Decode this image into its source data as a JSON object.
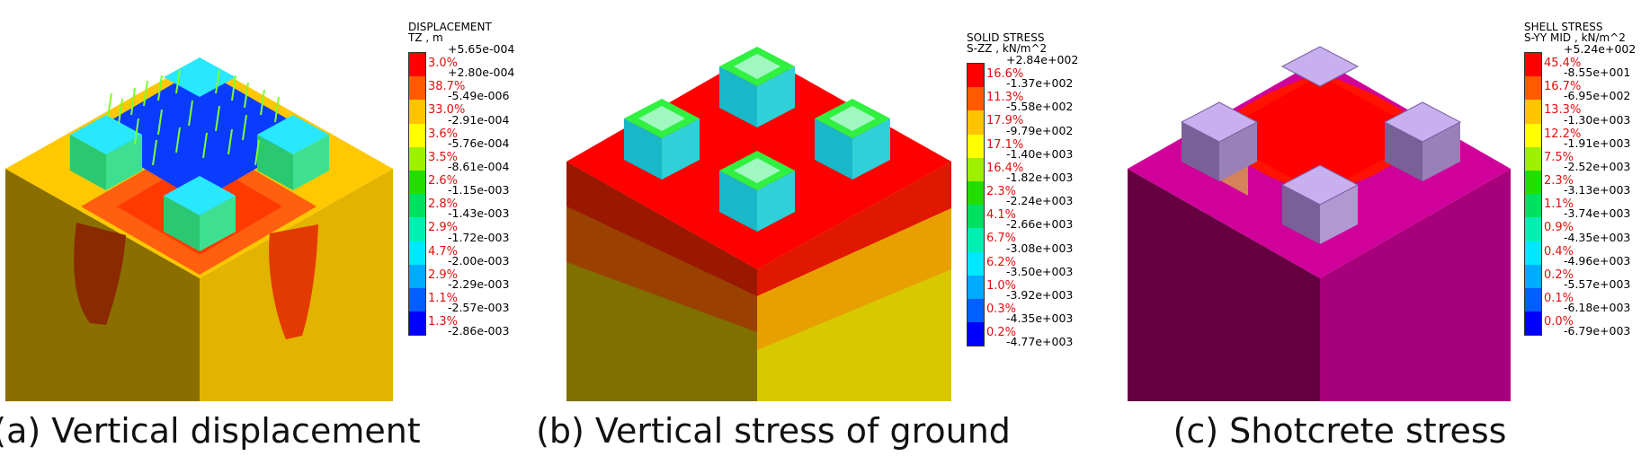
{
  "panels": [
    {
      "caption": "(a) Vertical displacement",
      "legend": {
        "title1": "DISPLACEMENT",
        "title2": "TZ , m",
        "values": [
          "+5.65e-004",
          "+2.80e-004",
          "-5.49e-006",
          "-2.91e-004",
          "-5.76e-004",
          "-8.61e-004",
          "-1.15e-003",
          "-1.43e-003",
          "-1.72e-003",
          "-2.00e-003",
          "-2.29e-003",
          "-2.57e-003",
          "-2.86e-003"
        ],
        "percents": [
          "3.0%",
          "38.7%",
          "33.0%",
          "3.6%",
          "3.5%",
          "2.6%",
          "2.8%",
          "2.9%",
          "4.7%",
          "2.9%",
          "1.1%",
          "1.3%"
        ],
        "colors": [
          "#ff0000",
          "#ff5a00",
          "#ffc400",
          "#ffff00",
          "#9cf000",
          "#23dc00",
          "#00e060",
          "#00f0b4",
          "#00e8ff",
          "#00aaff",
          "#0060ff",
          "#0000ff"
        ]
      }
    },
    {
      "caption": "(b) Vertical stress of ground",
      "legend": {
        "title1": "SOLID STRESS",
        "title2": "S-ZZ , kN/m^2",
        "values": [
          "+2.84e+002",
          "-1.37e+002",
          "-5.58e+002",
          "-9.79e+002",
          "-1.40e+003",
          "-1.82e+003",
          "-2.24e+003",
          "-2.66e+003",
          "-3.08e+003",
          "-3.50e+003",
          "-3.92e+003",
          "-4.35e+003",
          "-4.77e+003"
        ],
        "percents": [
          "16.6%",
          "11.3%",
          "17.9%",
          "17.1%",
          "16.4%",
          "2.3%",
          "4.1%",
          "6.7%",
          "6.2%",
          "1.0%",
          "0.3%",
          "0.2%"
        ],
        "colors": [
          "#ff0000",
          "#ff5a00",
          "#ffc400",
          "#ffff00",
          "#9cf000",
          "#23dc00",
          "#00e060",
          "#00f0b4",
          "#00e8ff",
          "#00aaff",
          "#0060ff",
          "#0000ff"
        ]
      }
    },
    {
      "caption": "(c) Shotcrete stress",
      "legend": {
        "title1": "SHELL STRESS",
        "title2": "S-YY MID , kN/m^2",
        "values": [
          "+5.24e+002",
          "-8.55e+001",
          "-6.95e+002",
          "-1.30e+003",
          "-1.91e+003",
          "-2.52e+003",
          "-3.13e+003",
          "-3.74e+003",
          "-4.35e+003",
          "-4.96e+003",
          "-5.57e+003",
          "-6.18e+003",
          "-6.79e+003"
        ],
        "percents": [
          "45.4%",
          "16.7%",
          "13.3%",
          "12.2%",
          "7.5%",
          "2.3%",
          "1.1%",
          "0.9%",
          "0.4%",
          "0.2%",
          "0.1%",
          "0.0%"
        ],
        "colors": [
          "#ff0000",
          "#ff5a00",
          "#ffc400",
          "#ffff00",
          "#9cf000",
          "#23dc00",
          "#00e060",
          "#00f0b4",
          "#00e8ff",
          "#00aaff",
          "#0060ff",
          "#0000ff"
        ]
      }
    }
  ]
}
